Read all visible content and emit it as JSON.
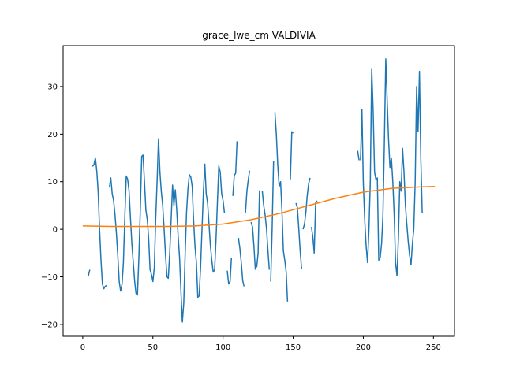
{
  "chart_data": {
    "type": "line",
    "title": "grace_lwe_cm VALDIVIA",
    "xlabel": "",
    "ylabel": "",
    "xlim": [
      -14,
      265
    ],
    "ylim": [
      -22.5,
      38.6
    ],
    "xticks": [
      0,
      50,
      100,
      150,
      200,
      250
    ],
    "yticks": [
      -20,
      -10,
      0,
      10,
      20,
      30
    ],
    "grid": false,
    "series": [
      {
        "color": "#1f77b4",
        "segments": [
          [
            [
              4,
              -9.8
            ],
            [
              5,
              -8.5
            ]
          ],
          [
            [
              7,
              13.2
            ],
            [
              8,
              13.6
            ],
            [
              9,
              15.0
            ],
            [
              10,
              12.2
            ],
            [
              11,
              8.0
            ],
            [
              12,
              0.0
            ],
            [
              13,
              -6.5
            ],
            [
              14,
              -11.5
            ],
            [
              15,
              -12.5
            ],
            [
              16,
              -12.0
            ],
            [
              17,
              -11.8
            ]
          ],
          [
            [
              19,
              8.8
            ],
            [
              20,
              10.8
            ],
            [
              21,
              7.5
            ],
            [
              22,
              6.0
            ],
            [
              23,
              3.0
            ],
            [
              24,
              -1.0
            ],
            [
              25,
              -5.5
            ],
            [
              26,
              -11.0
            ],
            [
              27,
              -13.0
            ],
            [
              28,
              -11.5
            ],
            [
              29,
              -7.0
            ],
            [
              30,
              2.5
            ],
            [
              31,
              11.2
            ],
            [
              32,
              10.5
            ],
            [
              33,
              8.0
            ],
            [
              34,
              2.5
            ],
            [
              35,
              -3.0
            ],
            [
              36,
              -7.0
            ],
            [
              37,
              -11.0
            ],
            [
              38,
              -13.5
            ],
            [
              39,
              -13.8
            ],
            [
              40,
              -6.0
            ],
            [
              41,
              4.0
            ],
            [
              42,
              15.3
            ],
            [
              43,
              15.6
            ],
            [
              44,
              10.0
            ],
            [
              45,
              4.0
            ],
            [
              46,
              2.0
            ],
            [
              47,
              -2.0
            ],
            [
              48,
              -8.5
            ],
            [
              49,
              -9.5
            ],
            [
              50,
              -11.0
            ],
            [
              51,
              -8.0
            ],
            [
              52,
              2.0
            ],
            [
              53,
              10.0
            ],
            [
              54,
              19.0
            ],
            [
              55,
              12.0
            ],
            [
              56,
              8.0
            ],
            [
              57,
              5.0
            ],
            [
              58,
              0.0
            ],
            [
              59,
              -5.5
            ],
            [
              60,
              -10.0
            ],
            [
              61,
              -10.3
            ],
            [
              62,
              -5.0
            ],
            [
              63,
              2.0
            ],
            [
              64,
              9.3
            ],
            [
              65,
              5.0
            ],
            [
              66,
              8.3
            ],
            [
              67,
              4.0
            ],
            [
              68,
              -1.5
            ],
            [
              69,
              -6.0
            ],
            [
              70,
              -13.0
            ],
            [
              71,
              -19.5
            ],
            [
              72,
              -15.5
            ],
            [
              73,
              -5.0
            ],
            [
              74,
              3.5
            ],
            [
              75,
              8.5
            ],
            [
              76,
              11.5
            ],
            [
              77,
              11.0
            ],
            [
              78,
              9.0
            ],
            [
              79,
              2.0
            ],
            [
              80,
              -3.5
            ],
            [
              81,
              -7.0
            ],
            [
              82,
              -14.3
            ],
            [
              83,
              -14.0
            ],
            [
              84,
              -8.0
            ],
            [
              85,
              0.0
            ],
            [
              86,
              8.0
            ],
            [
              87,
              13.7
            ],
            [
              88,
              7.5
            ],
            [
              89,
              5.5
            ],
            [
              90,
              1.0
            ],
            [
              91,
              -3.5
            ],
            [
              92,
              -6.5
            ],
            [
              93,
              -9.0
            ],
            [
              94,
              -8.5
            ],
            [
              95,
              -2.0
            ],
            [
              96,
              6.0
            ],
            [
              97,
              13.3
            ],
            [
              98,
              12.0
            ],
            [
              99,
              7.5
            ],
            [
              100,
              6.0
            ],
            [
              101,
              3.5
            ]
          ],
          [
            [
              103,
              -8.7
            ],
            [
              104,
              -11.5
            ],
            [
              105,
              -11.0
            ],
            [
              106,
              -6.0
            ]
          ],
          [
            [
              107,
              7.0
            ],
            [
              108,
              11.3
            ],
            [
              109,
              11.8
            ],
            [
              110,
              18.5
            ]
          ],
          [
            [
              111,
              -1.8
            ],
            [
              112,
              -4.0
            ],
            [
              113,
              -7.0
            ],
            [
              114,
              -10.8
            ],
            [
              115,
              -12.0
            ]
          ],
          [
            [
              116,
              3.5
            ],
            [
              117,
              8.0
            ],
            [
              118,
              10.5
            ],
            [
              119,
              12.3
            ]
          ],
          [
            [
              120,
              1.5
            ],
            [
              121,
              0.5
            ],
            [
              122,
              -3.5
            ],
            [
              123,
              -8.5
            ]
          ],
          [
            [
              124,
              -8.0
            ],
            [
              125,
              -5.0
            ],
            [
              126,
              8.2
            ]
          ],
          [
            [
              128,
              8.0
            ],
            [
              129,
              5.0
            ],
            [
              130,
              3.0
            ],
            [
              131,
              0.0
            ],
            [
              132,
              -4.5
            ],
            [
              133,
              -8.5
            ]
          ],
          [
            [
              134,
              -11.0
            ],
            [
              135,
              0.0
            ],
            [
              136,
              14.4
            ]
          ],
          [
            [
              137,
              24.6
            ],
            [
              138,
              20.0
            ],
            [
              139,
              13.5
            ],
            [
              140,
              9.0
            ],
            [
              141,
              10.0
            ],
            [
              142,
              4.0
            ],
            [
              143,
              -4.5
            ],
            [
              144,
              -6.5
            ],
            [
              145,
              -9.0
            ],
            [
              146,
              -15.2
            ]
          ],
          [
            [
              148,
              10.5
            ],
            [
              149,
              20.5
            ],
            [
              150,
              20.2
            ]
          ],
          [
            [
              152,
              5.5
            ],
            [
              153,
              4.5
            ],
            [
              154,
              0.0
            ],
            [
              155,
              -4.5
            ],
            [
              156,
              -8.3
            ]
          ],
          [
            [
              157,
              0.0
            ],
            [
              158,
              1.0
            ],
            [
              159,
              3.5
            ],
            [
              160,
              7.0
            ],
            [
              161,
              9.5
            ],
            [
              162,
              10.8
            ]
          ],
          [
            [
              163,
              0.5
            ],
            [
              164,
              -1.5
            ],
            [
              165,
              -5.0
            ],
            [
              166,
              5.5
            ],
            [
              167,
              6.0
            ]
          ],
          [
            [
              196,
              16.5
            ],
            [
              197,
              14.5
            ]
          ],
          [
            [
              198,
              14.5
            ],
            [
              199,
              25.2
            ],
            [
              200,
              10.0
            ],
            [
              201,
              2.0
            ],
            [
              202,
              -3.5
            ],
            [
              203,
              -7.0
            ],
            [
              204,
              0.0
            ],
            [
              205,
              10.0
            ],
            [
              206,
              33.8
            ],
            [
              207,
              25.0
            ],
            [
              208,
              12.0
            ],
            [
              209,
              10.5
            ],
            [
              210,
              10.8
            ],
            [
              211,
              -6.5
            ],
            [
              212,
              -6.0
            ],
            [
              213,
              -3.0
            ],
            [
              214,
              3.0
            ],
            [
              215,
              18.0
            ],
            [
              216,
              35.8
            ],
            [
              217,
              27.0
            ],
            [
              218,
              19.0
            ],
            [
              219,
              13.0
            ],
            [
              220,
              15.0
            ],
            [
              221,
              10.0
            ],
            [
              222,
              3.0
            ],
            [
              223,
              -7.0
            ],
            [
              224,
              -9.8
            ],
            [
              225,
              -2.0
            ],
            [
              226,
              10.0
            ],
            [
              227,
              8.0
            ],
            [
              228,
              17.0
            ],
            [
              229,
              12.0
            ],
            [
              230,
              5.0
            ],
            [
              231,
              1.0
            ],
            [
              232,
              -2.5
            ],
            [
              233,
              -5.5
            ],
            [
              234,
              -7.5
            ],
            [
              235,
              -3.0
            ],
            [
              236,
              0.0
            ],
            [
              237,
              10.0
            ],
            [
              238,
              30.0
            ],
            [
              239,
              20.5
            ],
            [
              240,
              33.2
            ],
            [
              241,
              15.0
            ],
            [
              242,
              3.5
            ]
          ]
        ]
      },
      {
        "color": "#ff7f0e",
        "segments": [
          [
            [
              0,
              0.7
            ],
            [
              20,
              0.6
            ],
            [
              40,
              0.6
            ],
            [
              60,
              0.6
            ],
            [
              80,
              0.7
            ],
            [
              100,
              1.1
            ],
            [
              120,
              2.0
            ],
            [
              140,
              3.3
            ],
            [
              160,
              4.9
            ],
            [
              180,
              6.5
            ],
            [
              200,
              7.8
            ],
            [
              220,
              8.6
            ],
            [
              240,
              8.9
            ],
            [
              251,
              9.0
            ]
          ]
        ]
      }
    ]
  }
}
